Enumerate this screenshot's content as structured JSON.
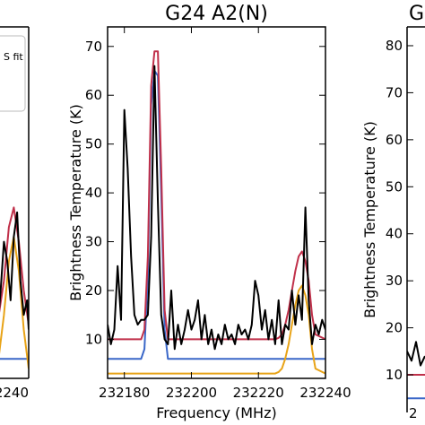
{
  "chart_data": [
    {
      "type": "line",
      "title": "",
      "xlabel": "",
      "ylabel": "",
      "xlim": [
        232190,
        232240
      ],
      "x_ticks": [
        {
          "value": 232240,
          "label": "232240"
        }
      ],
      "x_tick_label_partial": "232240",
      "legend": {
        "position": "top-left",
        "partial_text": "S fit"
      },
      "series": [
        {
          "color": "#000000",
          "x": [
            232221,
            232223,
            232225,
            232227,
            232229,
            232231,
            232233,
            232235,
            232237,
            232239,
            232240
          ],
          "y": [
            12,
            20,
            30,
            26,
            18,
            31,
            36,
            22,
            15,
            18,
            12
          ]
        },
        {
          "color": "#c0304a",
          "x": [
            232221,
            232225,
            232228,
            232231,
            232234,
            232237,
            232240
          ],
          "y": [
            13,
            22,
            33,
            37,
            30,
            20,
            13
          ]
        },
        {
          "color": "#e8a317",
          "x": [
            232221,
            232225,
            232228,
            232231,
            232234,
            232237,
            232240
          ],
          "y": [
            4,
            15,
            26,
            31,
            24,
            12,
            4
          ]
        },
        {
          "color": "#3a67c8",
          "x": [
            232221,
            232240
          ],
          "y": [
            6,
            6
          ]
        }
      ]
    },
    {
      "type": "line",
      "title": "G24 A2(N)",
      "xlabel": "Frequency (MHz)",
      "ylabel": "Brightness Temperature (K)",
      "xlim": [
        232175,
        232240
      ],
      "ylim": [
        2,
        74
      ],
      "x_ticks": [
        232180,
        232200,
        232220,
        232240
      ],
      "y_ticks": [
        10,
        20,
        30,
        40,
        50,
        60,
        70
      ],
      "series": [
        {
          "color": "#000000",
          "x": [
            232175,
            232176,
            232177,
            232178,
            232179,
            232180,
            232181,
            232182,
            232183,
            232184,
            232185,
            232186,
            232187,
            232188,
            232189,
            232190,
            232191,
            232192,
            232193,
            232194,
            232195,
            232196,
            232197,
            232198,
            232199,
            232200,
            232201,
            232202,
            232203,
            232204,
            232205,
            232206,
            232207,
            232208,
            232209,
            232210,
            232211,
            232212,
            232213,
            232214,
            232215,
            232216,
            232217,
            232218,
            232219,
            232220,
            232221,
            232222,
            232223,
            232224,
            232225,
            232226,
            232227,
            232228,
            232229,
            232230,
            232231,
            232232,
            232233,
            232234,
            232235,
            232236,
            232237,
            232238,
            232239,
            232240
          ],
          "y": [
            13,
            9,
            12,
            25,
            14,
            57,
            45,
            27,
            15,
            13,
            14,
            14,
            15,
            31,
            66,
            38,
            15,
            10,
            9,
            20,
            8,
            13,
            9,
            12,
            16,
            12,
            14,
            18,
            10,
            15,
            9,
            12,
            8,
            11,
            9,
            13,
            10,
            11,
            9,
            13,
            11,
            12,
            10,
            13,
            22,
            19,
            12,
            16,
            10,
            14,
            9,
            18,
            9,
            13,
            12,
            20,
            13,
            19,
            14,
            37,
            18,
            9,
            13,
            11,
            14,
            12
          ]
        },
        {
          "color": "#c0304a",
          "x": [
            232175,
            232185,
            232186,
            232187,
            232188,
            232189,
            232190,
            232191,
            232192,
            232193,
            232225,
            232226,
            232227,
            232228,
            232229,
            232230,
            232231,
            232232,
            232233,
            232234,
            232235,
            232236,
            232237,
            232240
          ],
          "y": [
            10,
            10,
            12,
            27,
            62,
            69,
            69,
            45,
            16,
            10,
            10,
            10.3,
            11,
            13,
            16,
            20,
            24,
            27,
            28,
            26,
            22,
            15,
            11,
            10
          ]
        },
        {
          "color": "#3a67c8",
          "x": [
            232175,
            232185,
            232186,
            232187,
            232188,
            232189,
            232190,
            232191,
            232192,
            232193,
            232240
          ],
          "y": [
            6,
            6,
            8,
            23,
            58,
            65,
            64,
            40,
            12,
            6,
            6
          ]
        },
        {
          "color": "#e8a317",
          "x": [
            232175,
            232225,
            232226,
            232227,
            232228,
            232229,
            232230,
            232231,
            232232,
            232233,
            232234,
            232235,
            232236,
            232237,
            232240
          ],
          "y": [
            3,
            3,
            3.3,
            4,
            6,
            9,
            13,
            17,
            20,
            21,
            19,
            15,
            8,
            4,
            3
          ]
        }
      ]
    },
    {
      "type": "line",
      "title": "G",
      "xlabel": "",
      "ylabel": "Brightness Temperature (K)",
      "ylim": [
        2,
        84
      ],
      "y_ticks": [
        10,
        20,
        30,
        40,
        50,
        60,
        70,
        80
      ],
      "x_tick_label_partial": "2",
      "series": [
        {
          "color": "#000000",
          "x": [
            0,
            1,
            2,
            3,
            4
          ],
          "y": [
            15,
            13,
            17,
            12,
            14
          ]
        },
        {
          "color": "#c0304a",
          "x": [
            0,
            4
          ],
          "y": [
            10,
            10
          ]
        },
        {
          "color": "#3a67c8",
          "x": [
            0,
            4
          ],
          "y": [
            5,
            5
          ]
        }
      ]
    }
  ]
}
